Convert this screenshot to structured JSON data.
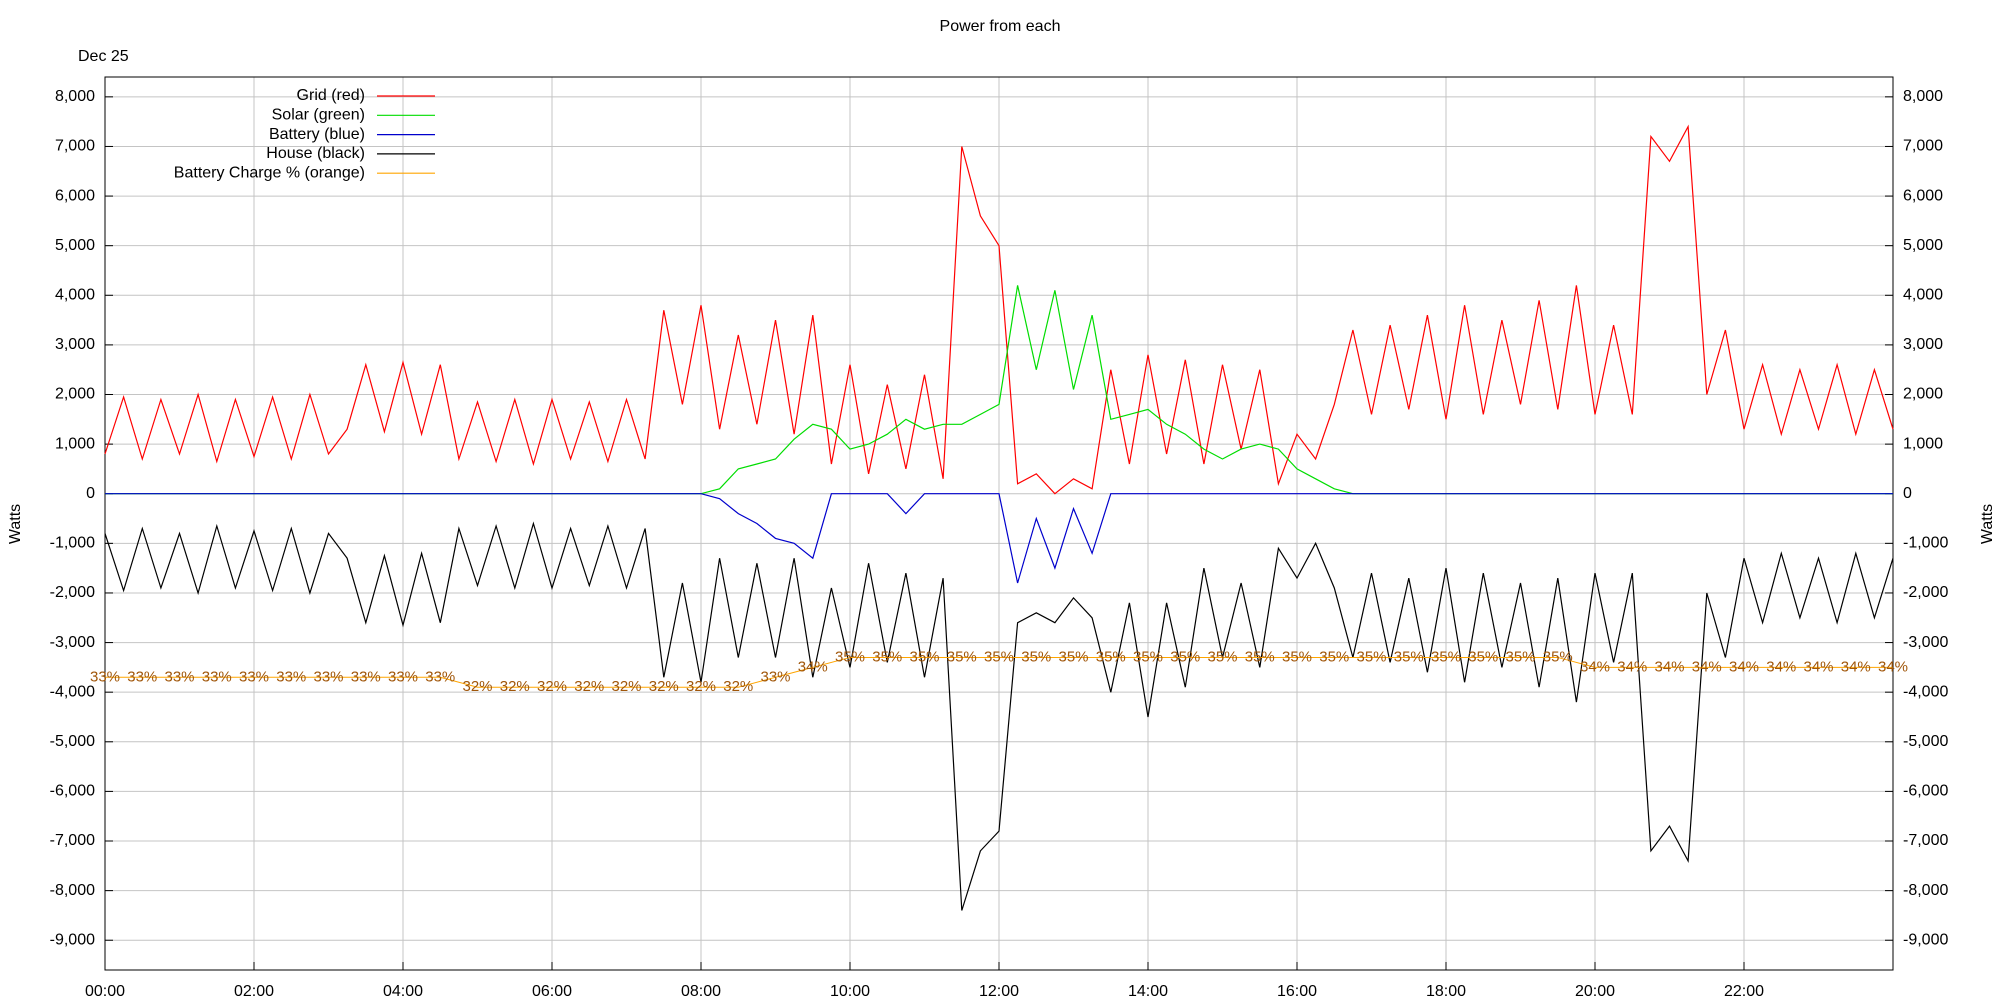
{
  "chart_data": {
    "type": "line",
    "title": "Power from each",
    "subtitle": "Dec 25",
    "ylabel": "Watts",
    "y2label": "Watts",
    "legend": "top left",
    "grid": true,
    "xlim": [
      0,
      24
    ],
    "xticks": [
      {
        "value": 0,
        "label": "00:00"
      },
      {
        "value": 2,
        "label": "02:00"
      },
      {
        "value": 4,
        "label": "04:00"
      },
      {
        "value": 6,
        "label": "06:00"
      },
      {
        "value": 8,
        "label": "08:00"
      },
      {
        "value": 10,
        "label": "10:00"
      },
      {
        "value": 12,
        "label": "12:00"
      },
      {
        "value": 14,
        "label": "14:00"
      },
      {
        "value": 16,
        "label": "16:00"
      },
      {
        "value": 18,
        "label": "18:00"
      },
      {
        "value": 20,
        "label": "20:00"
      },
      {
        "value": 22,
        "label": "22:00"
      }
    ],
    "ylim": [
      -9600,
      8400
    ],
    "yticks": [
      {
        "value": -9000,
        "label": "-9,000"
      },
      {
        "value": -8000,
        "label": "-8,000"
      },
      {
        "value": -7000,
        "label": "-7,000"
      },
      {
        "value": -6000,
        "label": "-6,000"
      },
      {
        "value": -5000,
        "label": "-5,000"
      },
      {
        "value": -4000,
        "label": "-4,000"
      },
      {
        "value": -3000,
        "label": "-3,000"
      },
      {
        "value": -2000,
        "label": "-2,000"
      },
      {
        "value": -1000,
        "label": "-1,000"
      },
      0,
      {
        "value": 1000,
        "label": "1,000"
      },
      {
        "value": 2000,
        "label": "2,000"
      },
      {
        "value": 3000,
        "label": "3,000"
      },
      {
        "value": 4000,
        "label": "4,000"
      },
      {
        "value": 5000,
        "label": "5,000"
      },
      {
        "value": 6000,
        "label": "6,000"
      },
      {
        "value": 7000,
        "label": "7,000"
      },
      {
        "value": 8000,
        "label": "8,000"
      }
    ],
    "y2lim": [
      -9600,
      8400
    ],
    "y2ticks": [
      {
        "value": -9000,
        "label": "-9,000"
      },
      {
        "value": -8000,
        "label": "-8,000"
      },
      {
        "value": -7000,
        "label": "-7,000"
      },
      {
        "value": -6000,
        "label": "-6,000"
      },
      {
        "value": -5000,
        "label": "-5,000"
      },
      {
        "value": -4000,
        "label": "-4,000"
      },
      {
        "value": -3000,
        "label": "-3,000"
      },
      {
        "value": -2000,
        "label": "-2,000"
      },
      {
        "value": -1000,
        "label": "-1,000"
      },
      0,
      {
        "value": 1000,
        "label": "1,000"
      },
      {
        "value": 2000,
        "label": "2,000"
      },
      {
        "value": 3000,
        "label": "3,000"
      },
      {
        "value": 4000,
        "label": "4,000"
      },
      {
        "value": 5000,
        "label": "5,000"
      },
      {
        "value": 6000,
        "label": "6,000"
      },
      {
        "value": 7000,
        "label": "7,000"
      },
      {
        "value": 8000,
        "label": "8,000"
      }
    ],
    "x": [
      0,
      0.25,
      0.5,
      0.75,
      1,
      1.25,
      1.5,
      1.75,
      2,
      2.25,
      2.5,
      2.75,
      3,
      3.25,
      3.5,
      3.75,
      4,
      4.25,
      4.5,
      4.75,
      5,
      5.25,
      5.5,
      5.75,
      6,
      6.25,
      6.5,
      6.75,
      7,
      7.25,
      7.5,
      7.75,
      8,
      8.25,
      8.5,
      8.75,
      9,
      9.25,
      9.5,
      9.75,
      10,
      10.25,
      10.5,
      10.75,
      11,
      11.25,
      11.5,
      11.75,
      12,
      12.25,
      12.5,
      12.75,
      13,
      13.25,
      13.5,
      13.75,
      14,
      14.25,
      14.5,
      14.75,
      15,
      15.25,
      15.5,
      15.75,
      16,
      16.25,
      16.5,
      16.75,
      17,
      17.25,
      17.5,
      17.75,
      18,
      18.25,
      18.5,
      18.75,
      19,
      19.25,
      19.5,
      19.75,
      20,
      20.25,
      20.5,
      20.75,
      21,
      21.25,
      21.5,
      21.75,
      22,
      22.25,
      22.5,
      22.75,
      23,
      23.25,
      23.5,
      23.75,
      24
    ],
    "series": [
      {
        "name": "Grid (red)",
        "color": "#ff0000",
        "values": [
          800,
          1950,
          700,
          1900,
          800,
          2000,
          650,
          1900,
          750,
          1950,
          700,
          2000,
          800,
          1300,
          2600,
          1250,
          2650,
          1200,
          2600,
          700,
          1850,
          650,
          1900,
          600,
          1900,
          700,
          1850,
          650,
          1900,
          700,
          3700,
          1800,
          3800,
          1300,
          3200,
          1400,
          3500,
          1200,
          3600,
          600,
          2600,
          400,
          2200,
          500,
          2400,
          300,
          7000,
          5600,
          5000,
          200,
          400,
          0,
          300,
          100,
          2500,
          600,
          2800,
          800,
          2700,
          600,
          2600,
          900,
          2500,
          200,
          1200,
          700,
          1800,
          3300,
          1600,
          3400,
          1700,
          3600,
          1500,
          3800,
          1600,
          3500,
          1800,
          3900,
          1700,
          4200,
          1600,
          3400,
          1600,
          7200,
          6700,
          7400,
          2000,
          3300,
          1300,
          2600,
          1200,
          2500,
          1300,
          2600,
          1200,
          2500,
          1300
        ]
      },
      {
        "name": "Solar (green)",
        "color": "#00dd00",
        "values": [
          0,
          0,
          0,
          0,
          0,
          0,
          0,
          0,
          0,
          0,
          0,
          0,
          0,
          0,
          0,
          0,
          0,
          0,
          0,
          0,
          0,
          0,
          0,
          0,
          0,
          0,
          0,
          0,
          0,
          0,
          0,
          0,
          0,
          100,
          500,
          600,
          700,
          1100,
          1400,
          1300,
          900,
          1000,
          1200,
          1500,
          1300,
          1400,
          1400,
          1600,
          1800,
          4200,
          2500,
          4100,
          2100,
          3600,
          1500,
          1600,
          1700,
          1400,
          1200,
          900,
          700,
          900,
          1000,
          900,
          500,
          300,
          100,
          0,
          0,
          0,
          0,
          0,
          0,
          0,
          0,
          0,
          0,
          0,
          0,
          0,
          0,
          0,
          0,
          0,
          0,
          0,
          0,
          0,
          0,
          0,
          0,
          0,
          0,
          0,
          0,
          0,
          0
        ]
      },
      {
        "name": "Battery (blue)",
        "color": "#0000cc",
        "values": [
          0,
          0,
          0,
          0,
          0,
          0,
          0,
          0,
          0,
          0,
          0,
          0,
          0,
          0,
          0,
          0,
          0,
          0,
          0,
          0,
          0,
          0,
          0,
          0,
          0,
          0,
          0,
          0,
          0,
          0,
          0,
          0,
          0,
          -100,
          -400,
          -600,
          -900,
          -1000,
          -1300,
          0,
          0,
          0,
          0,
          -400,
          0,
          0,
          0,
          0,
          0,
          -1800,
          -500,
          -1500,
          -300,
          -1200,
          0,
          0,
          0,
          0,
          0,
          0,
          0,
          0,
          0,
          0,
          0,
          0,
          0,
          0,
          0,
          0,
          0,
          0,
          0,
          0,
          0,
          0,
          0,
          0,
          0,
          0,
          0,
          0,
          0,
          0,
          0,
          0,
          0,
          0,
          0,
          0,
          0,
          0,
          0,
          0,
          0,
          0,
          0
        ]
      },
      {
        "name": "House (black)",
        "color": "#000000",
        "values": [
          -800,
          -1950,
          -700,
          -1900,
          -800,
          -2000,
          -650,
          -1900,
          -750,
          -1950,
          -700,
          -2000,
          -800,
          -1300,
          -2600,
          -1250,
          -2650,
          -1200,
          -2600,
          -700,
          -1850,
          -650,
          -1900,
          -600,
          -1900,
          -700,
          -1850,
          -650,
          -1900,
          -700,
          -3700,
          -1800,
          -3800,
          -1300,
          -3300,
          -1400,
          -3300,
          -1300,
          -3700,
          -1900,
          -3500,
          -1400,
          -3400,
          -1600,
          -3700,
          -1700,
          -8400,
          -7200,
          -6800,
          -2600,
          -2400,
          -2600,
          -2100,
          -2500,
          -4000,
          -2200,
          -4500,
          -2200,
          -3900,
          -1500,
          -3300,
          -1800,
          -3500,
          -1100,
          -1700,
          -1000,
          -1900,
          -3300,
          -1600,
          -3400,
          -1700,
          -3600,
          -1500,
          -3800,
          -1600,
          -3500,
          -1800,
          -3900,
          -1700,
          -4200,
          -1600,
          -3400,
          -1600,
          -7200,
          -6700,
          -7400,
          -2000,
          -3300,
          -1300,
          -2600,
          -1200,
          -2500,
          -1300,
          -2600,
          -1200,
          -2500,
          -1300
        ]
      },
      {
        "name": "Battery Charge % (orange)",
        "color": "#ffa500",
        "x": [
          0,
          0.5,
          1,
          1.5,
          2,
          2.5,
          3,
          3.5,
          4,
          4.5,
          5,
          5.5,
          6,
          6.5,
          7,
          7.5,
          8,
          8.5,
          9,
          9.5,
          10,
          10.5,
          11,
          11.5,
          12,
          12.5,
          13,
          13.5,
          14,
          14.5,
          15,
          15.5,
          16,
          16.5,
          17,
          17.5,
          18,
          18.5,
          19,
          19.5,
          20,
          20.5,
          21,
          21.5,
          22,
          22.5,
          23,
          23.5,
          24
        ],
        "values": [
          33,
          33,
          33,
          33,
          33,
          33,
          33,
          33,
          33,
          33,
          32,
          32,
          32,
          32,
          32,
          32,
          32,
          32,
          33,
          34,
          35,
          35,
          35,
          35,
          35,
          35,
          35,
          35,
          35,
          35,
          35,
          35,
          35,
          35,
          35,
          35,
          35,
          35,
          35,
          35,
          34,
          34,
          34,
          34,
          34,
          34,
          34,
          34,
          34
        ],
        "value_labels": [
          "33%",
          "33%",
          "33%",
          "33%",
          "33%",
          "33%",
          "33%",
          "33%",
          "33%",
          "33%",
          "32%",
          "32%",
          "32%",
          "32%",
          "32%",
          "32%",
          "32%",
          "32%",
          "33%",
          "34%",
          "35%",
          "35%",
          "35%",
          "35%",
          "35%",
          "35%",
          "35%",
          "35%",
          "35%",
          "35%",
          "35%",
          "35%",
          "35%",
          "35%",
          "35%",
          "35%",
          "35%",
          "35%",
          "35%",
          "35%",
          "34%",
          "34%",
          "34%",
          "34%",
          "34%",
          "34%",
          "34%",
          "34%",
          "34%"
        ]
      }
    ]
  }
}
